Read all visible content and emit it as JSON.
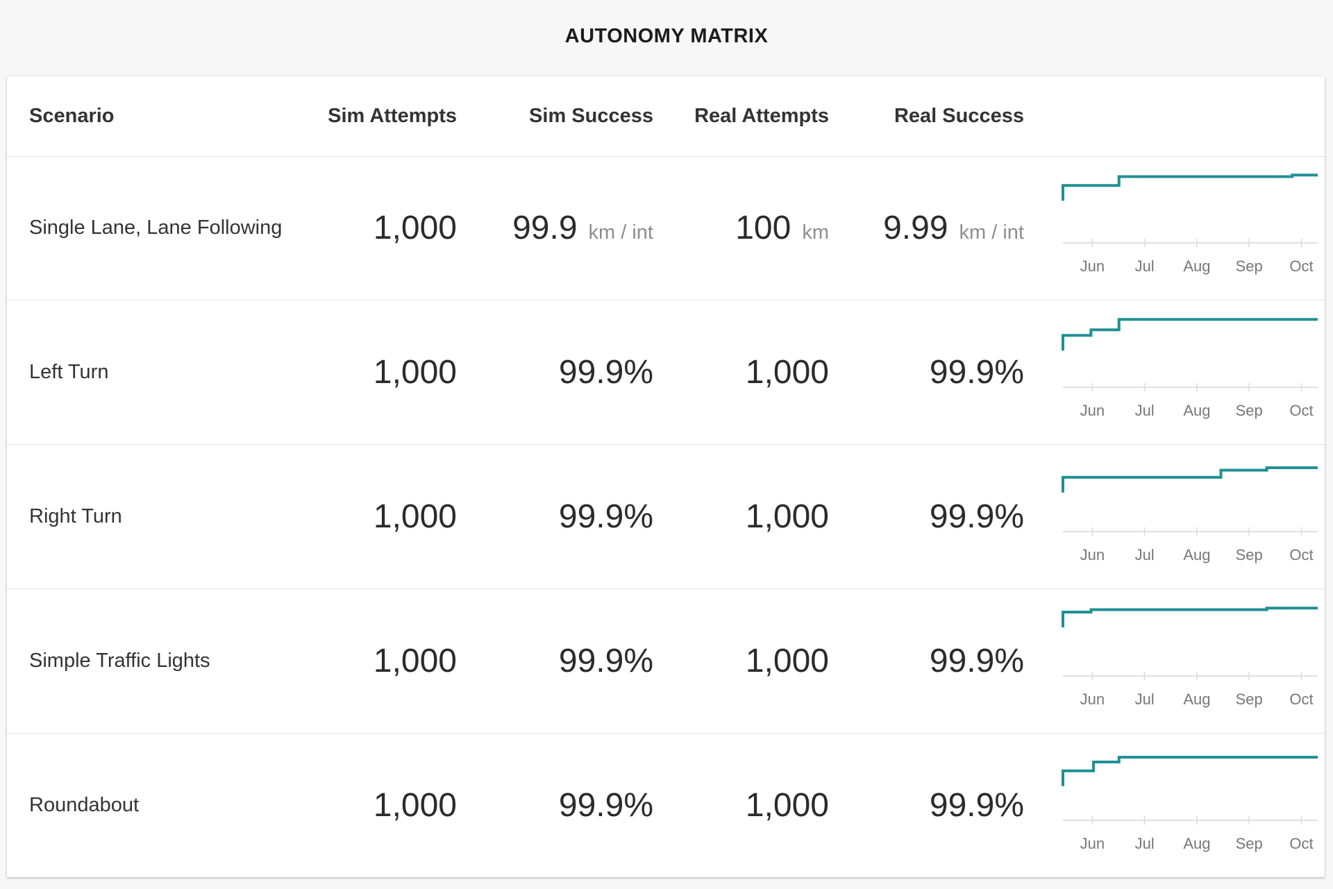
{
  "title": "AUTONOMY MATRIX",
  "columns": {
    "scenario": "Scenario",
    "sim_attempts": "Sim Attempts",
    "sim_success": "Sim Success",
    "real_attempts": "Real Attempts",
    "real_success": "Real Success"
  },
  "colors": {
    "spark_line": "#1f9093",
    "axis": "#e0e0e0",
    "unit_text": "#8e8e8e"
  },
  "rows": [
    {
      "scenario": "Single Lane, Lane Following",
      "sim_attempts": "1,000",
      "sim_success": "99.9",
      "sim_success_unit": "km / int",
      "real_attempts": "100",
      "real_attempts_unit": "km",
      "real_success": "9.99",
      "real_success_unit": "km / int"
    },
    {
      "scenario": "Left Turn",
      "sim_attempts": "1,000",
      "sim_success": "99.9%",
      "sim_success_unit": "",
      "real_attempts": "1,000",
      "real_attempts_unit": "",
      "real_success": "99.9%",
      "real_success_unit": ""
    },
    {
      "scenario": "Right Turn",
      "sim_attempts": "1,000",
      "sim_success": "99.9%",
      "sim_success_unit": "",
      "real_attempts": "1,000",
      "real_attempts_unit": "",
      "real_success": "99.9%",
      "real_success_unit": ""
    },
    {
      "scenario": "Simple Traffic Lights",
      "sim_attempts": "1,000",
      "sim_success": "99.9%",
      "sim_success_unit": "",
      "real_attempts": "1,000",
      "real_attempts_unit": "",
      "real_success": "99.9%",
      "real_success_unit": ""
    },
    {
      "scenario": "Roundabout",
      "sim_attempts": "1,000",
      "sim_success": "99.9%",
      "sim_success_unit": "",
      "real_attempts": "1,000",
      "real_attempts_unit": "",
      "real_success": "99.9%",
      "real_success_unit": ""
    }
  ],
  "chart_data": [
    {
      "type": "line",
      "step": true,
      "x_ticks": [
        "Jun",
        "Jul",
        "Aug",
        "Sep",
        "Oct"
      ],
      "ylim": [
        0,
        1
      ],
      "x": [
        0,
        1.1,
        4.5,
        5.0
      ],
      "y": [
        0.72,
        0.83,
        0.85,
        0.85
      ]
    },
    {
      "type": "line",
      "step": true,
      "x_ticks": [
        "Jun",
        "Jul",
        "Aug",
        "Sep",
        "Oct"
      ],
      "ylim": [
        0,
        1
      ],
      "x": [
        0,
        0.55,
        1.1,
        5.0
      ],
      "y": [
        0.65,
        0.72,
        0.85,
        0.85
      ]
    },
    {
      "type": "line",
      "step": true,
      "x_ticks": [
        "Jun",
        "Jul",
        "Aug",
        "Sep",
        "Oct"
      ],
      "ylim": [
        0,
        1
      ],
      "x": [
        0,
        3.1,
        4.0,
        5.0
      ],
      "y": [
        0.68,
        0.77,
        0.8,
        0.8
      ]
    },
    {
      "type": "line",
      "step": true,
      "x_ticks": [
        "Jun",
        "Jul",
        "Aug",
        "Sep",
        "Oct"
      ],
      "ylim": [
        0,
        1
      ],
      "x": [
        0,
        0.55,
        4.0,
        5.0
      ],
      "y": [
        0.8,
        0.83,
        0.85,
        0.85
      ]
    },
    {
      "type": "line",
      "step": true,
      "x_ticks": [
        "Jun",
        "Jul",
        "Aug",
        "Sep",
        "Oct"
      ],
      "ylim": [
        0,
        1
      ],
      "x": [
        0,
        0.6,
        1.1,
        5.0
      ],
      "y": [
        0.62,
        0.73,
        0.79,
        0.79
      ]
    }
  ]
}
